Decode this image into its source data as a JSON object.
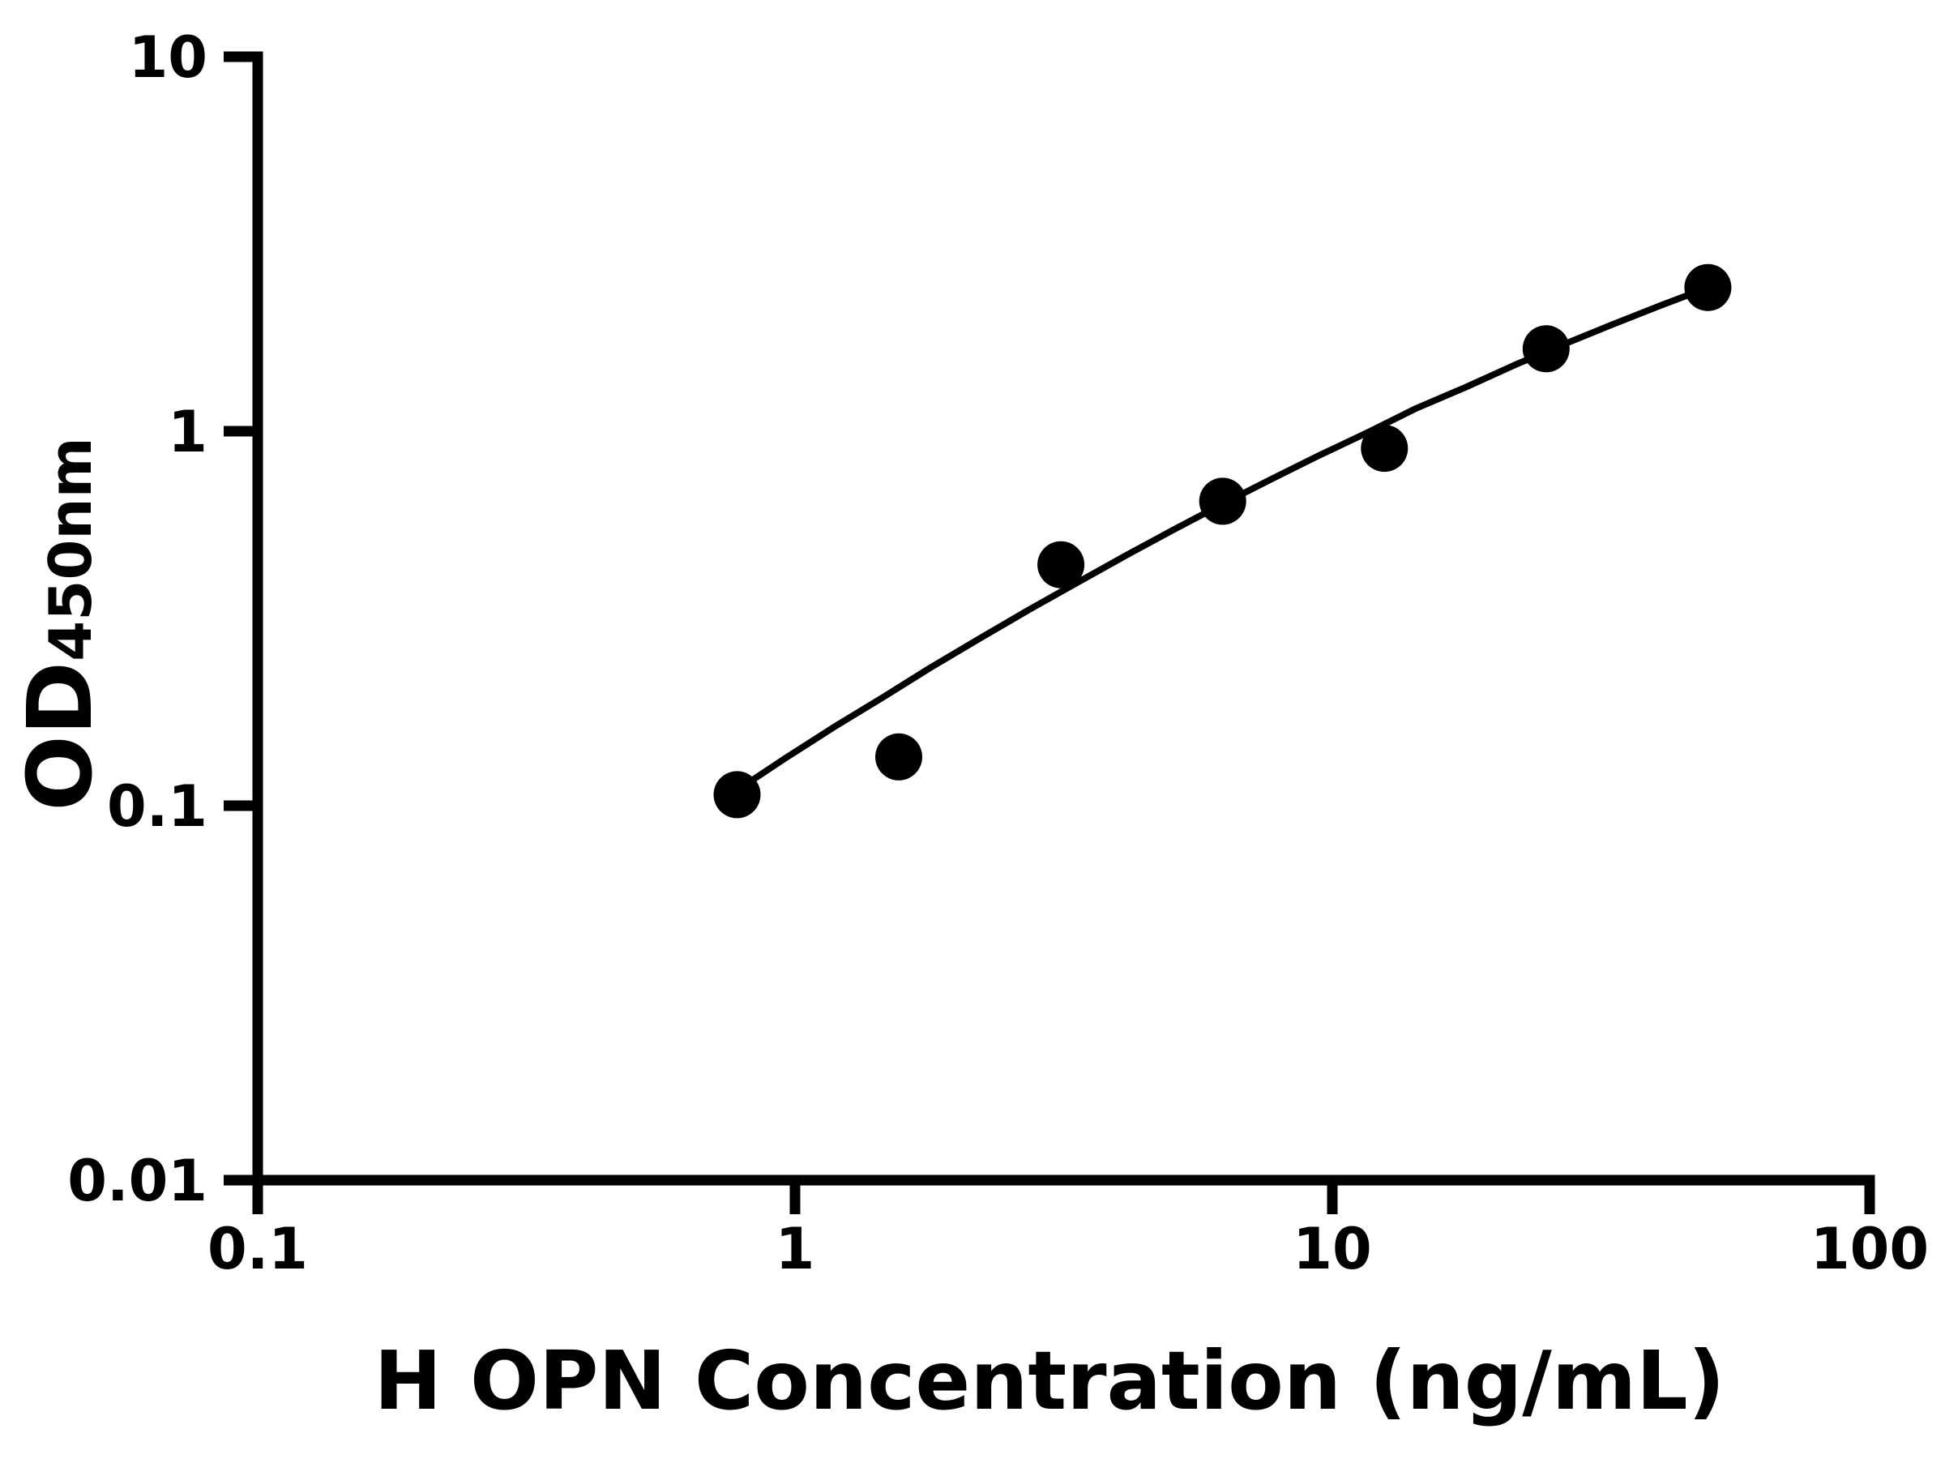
{
  "window": {
    "background_color": "#ffffff",
    "foreground_color": "#000000"
  },
  "chart_data": {
    "type": "scatter",
    "title": "",
    "xlabel": "H OPN Concentration (ng/mL)",
    "ylabel_main": "OD",
    "ylabel_sub": "450nm",
    "x_scale": "log",
    "y_scale": "log",
    "xlim": [
      0.1,
      100
    ],
    "ylim": [
      0.01,
      10
    ],
    "grid": false,
    "legend_position": "none",
    "axis_color": "#000000",
    "marker_color": "#000000",
    "curve_color": "#000000",
    "x_ticks": [
      {
        "value": 0.1,
        "label": "0.1"
      },
      {
        "value": 1,
        "label": "1"
      },
      {
        "value": 10,
        "label": "10"
      },
      {
        "value": 100,
        "label": "100"
      }
    ],
    "y_ticks": [
      {
        "value": 0.01,
        "label": "0.01"
      },
      {
        "value": 0.1,
        "label": "0.1"
      },
      {
        "value": 1,
        "label": "1"
      },
      {
        "value": 10,
        "label": "10"
      }
    ],
    "series": [
      {
        "name": "standard-points",
        "role": "scatter",
        "marker": "filled-circle",
        "color": "#000000",
        "points": [
          [
            0.78,
            0.107
          ],
          [
            1.56,
            0.135
          ],
          [
            3.125,
            0.44
          ],
          [
            6.25,
            0.65
          ],
          [
            12.5,
            0.9
          ],
          [
            25,
            1.66
          ],
          [
            50,
            2.42
          ]
        ]
      },
      {
        "name": "fit-curve",
        "role": "line",
        "color": "#000000",
        "points": [
          [
            0.78,
            0.11
          ],
          [
            0.96,
            0.134
          ],
          [
            1.18,
            0.162
          ],
          [
            1.46,
            0.195
          ],
          [
            1.79,
            0.234
          ],
          [
            2.21,
            0.28
          ],
          [
            2.72,
            0.333
          ],
          [
            3.35,
            0.394
          ],
          [
            4.12,
            0.465
          ],
          [
            5.07,
            0.546
          ],
          [
            6.24,
            0.639
          ],
          [
            7.69,
            0.744
          ],
          [
            9.47,
            0.863
          ],
          [
            11.7,
            0.996
          ],
          [
            14.3,
            1.15
          ],
          [
            17.7,
            1.31
          ],
          [
            21.8,
            1.5
          ],
          [
            26.8,
            1.7
          ],
          [
            33.0,
            1.92
          ],
          [
            40.6,
            2.16
          ],
          [
            50,
            2.42
          ]
        ]
      }
    ]
  }
}
